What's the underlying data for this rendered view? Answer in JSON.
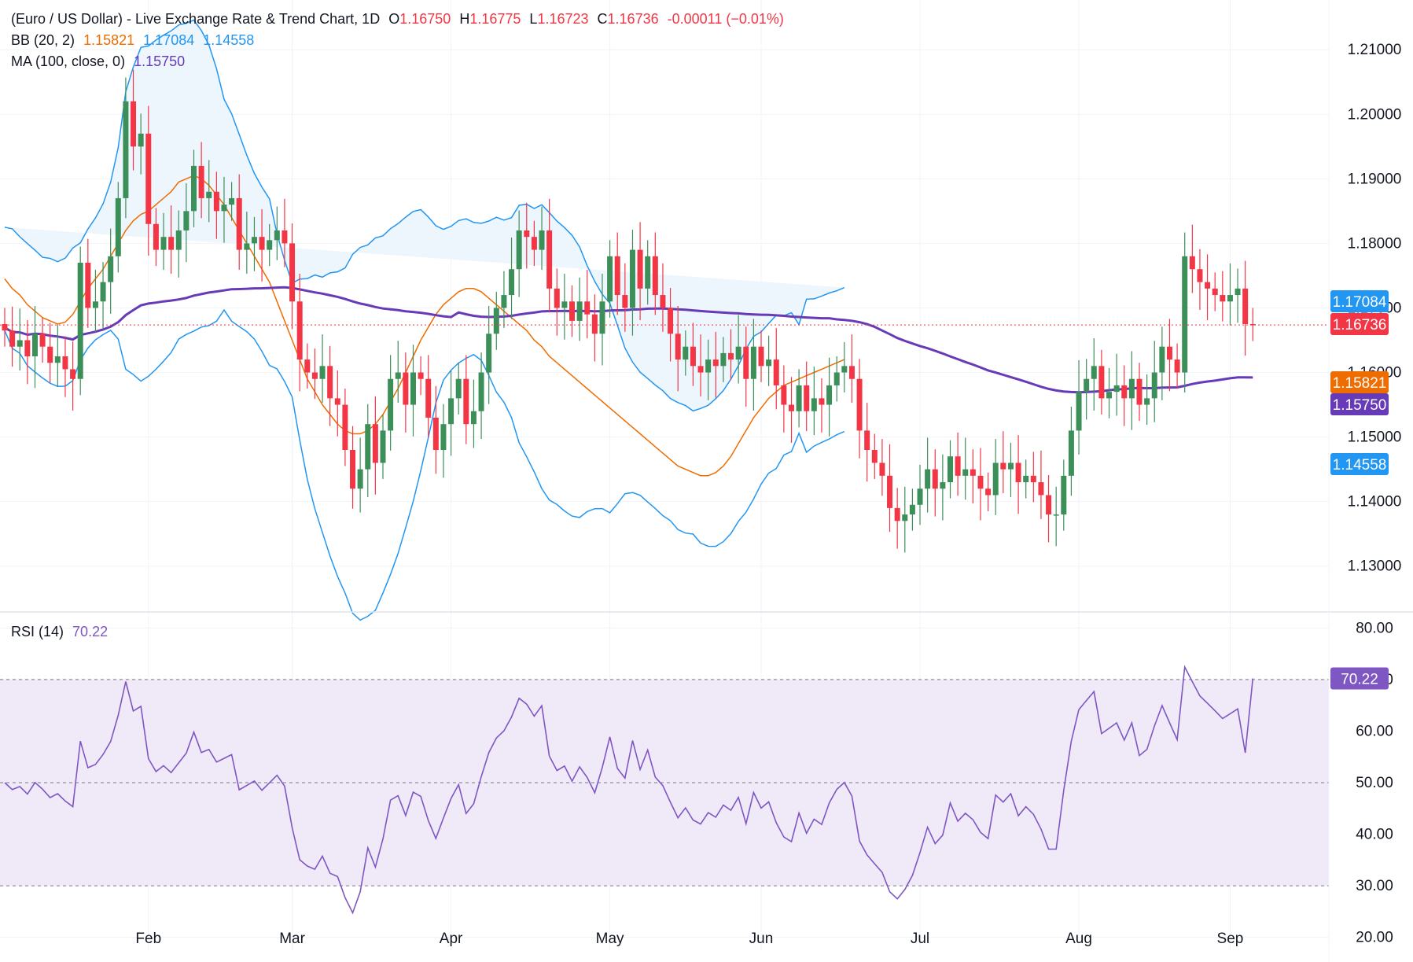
{
  "header": {
    "title": "(Euro / US Dollar) - Live Exchange Rate & Trend Chart, 1D",
    "open_label": "O",
    "open": "1.16750",
    "high_label": "H",
    "high": "1.16775",
    "low_label": "L",
    "low": "1.16723",
    "close_label": "C",
    "close": "1.16736",
    "change": "-0.00011 (−0.01%)"
  },
  "indicators": {
    "bb": {
      "label": "BB (20, 2)",
      "basis": "1.15821",
      "upper": "1.17084",
      "lower": "1.14558"
    },
    "ma": {
      "label": "MA (100, close, 0)",
      "value": "1.15750"
    },
    "rsi": {
      "label": "RSI (14)",
      "value": "70.22"
    }
  },
  "colors": {
    "up": "#26a69a",
    "up_fill": "#3d8f5a",
    "down": "#f23645",
    "bb_basis": "#ef6c00",
    "bb_band": "#2196f3",
    "bb_fill": "#eef6fd",
    "ma": "#673ab7",
    "rsi": "#7e57c2",
    "rsi_fill": "#efe9f8",
    "grid": "#f0f3fa",
    "axis_text": "#131722"
  },
  "chart_data": [
    {
      "type": "candlestick",
      "price_axis": {
        "ticks": [
          "1.21000",
          "1.20000",
          "1.19000",
          "1.18000",
          "1.17000",
          "1.16000",
          "1.15000",
          "1.14000",
          "1.13000"
        ],
        "range": [
          1.1229,
          1.2177
        ]
      },
      "time_axis": {
        "labels": [
          "Feb",
          "Mar",
          "Apr",
          "May",
          "Jun",
          "Jul",
          "Aug",
          "Sep"
        ],
        "label_index": [
          19,
          38,
          59,
          80,
          100,
          121,
          142,
          162
        ]
      },
      "price_badges": [
        {
          "name": "bb-upper",
          "value": "1.17084",
          "color": "#2196f3"
        },
        {
          "name": "last-price",
          "value": "1.16736",
          "color": "#f23645"
        },
        {
          "name": "bb-basis",
          "value": "1.15821",
          "color": "#ef6c00"
        },
        {
          "name": "ma",
          "value": "1.15750",
          "color": "#673ab7"
        },
        {
          "name": "bb-lower",
          "value": "1.14558",
          "color": "#2196f3"
        }
      ],
      "closes": [
        1.1665,
        1.164,
        1.165,
        1.1625,
        1.166,
        1.164,
        1.1615,
        1.1625,
        1.1605,
        1.159,
        1.177,
        1.17,
        1.171,
        1.174,
        1.178,
        1.187,
        1.202,
        1.195,
        1.197,
        1.183,
        1.179,
        1.181,
        1.179,
        1.182,
        1.185,
        1.192,
        1.187,
        1.188,
        1.185,
        1.186,
        1.187,
        1.179,
        1.18,
        1.181,
        1.179,
        1.1805,
        1.182,
        1.18,
        1.171,
        1.162,
        1.16,
        1.159,
        1.161,
        1.156,
        1.155,
        1.148,
        1.142,
        1.145,
        1.152,
        1.146,
        1.151,
        1.159,
        1.16,
        1.155,
        1.16,
        1.159,
        1.153,
        1.148,
        1.152,
        1.156,
        1.159,
        1.152,
        1.154,
        1.16,
        1.166,
        1.17,
        1.172,
        1.176,
        1.182,
        1.181,
        1.179,
        1.182,
        1.173,
        1.17,
        1.171,
        1.168,
        1.171,
        1.169,
        1.166,
        1.171,
        1.178,
        1.172,
        1.17,
        1.179,
        1.173,
        1.178,
        1.172,
        1.17,
        1.166,
        1.162,
        1.164,
        1.161,
        1.16,
        1.162,
        1.161,
        1.163,
        1.162,
        1.164,
        1.159,
        1.164,
        1.161,
        1.162,
        1.158,
        1.155,
        1.154,
        1.158,
        1.154,
        1.156,
        1.155,
        1.158,
        1.16,
        1.161,
        1.159,
        1.151,
        1.148,
        1.146,
        1.144,
        1.139,
        1.137,
        1.138,
        1.1395,
        1.142,
        1.145,
        1.142,
        1.143,
        1.147,
        1.144,
        1.145,
        1.144,
        1.142,
        1.141,
        1.146,
        1.145,
        1.146,
        1.143,
        1.144,
        1.143,
        1.141,
        1.138,
        1.138,
        1.144,
        1.151,
        1.157,
        1.159,
        1.161,
        1.156,
        1.157,
        1.158,
        1.156,
        1.159,
        1.155,
        1.156,
        1.16,
        1.164,
        1.162,
        1.16,
        1.178,
        1.176,
        1.174,
        1.173,
        1.172,
        1.171,
        1.172,
        1.173,
        1.1675,
        1.16736
      ],
      "bb_basis": [
        1.1745,
        1.173,
        1.172,
        1.1705,
        1.1695,
        1.1685,
        1.168,
        1.1675,
        1.1678,
        1.169,
        1.171,
        1.173,
        1.1745,
        1.176,
        1.178,
        1.18,
        1.182,
        1.1835,
        1.1845,
        1.185,
        1.186,
        1.187,
        1.188,
        1.1895,
        1.19,
        1.1905,
        1.19,
        1.189,
        1.1875,
        1.186,
        1.184,
        1.182,
        1.18,
        1.178,
        1.176,
        1.174,
        1.171,
        1.168,
        1.165,
        1.162,
        1.159,
        1.157,
        1.155,
        1.1535,
        1.152,
        1.151,
        1.1505,
        1.1505,
        1.151,
        1.152,
        1.1535,
        1.1555,
        1.1575,
        1.16,
        1.1625,
        1.165,
        1.167,
        1.169,
        1.1705,
        1.1715,
        1.1725,
        1.173,
        1.173,
        1.1725,
        1.1715,
        1.1705,
        1.1695,
        1.1685,
        1.1675,
        1.1665,
        1.165,
        1.164,
        1.1625,
        1.1615,
        1.1605,
        1.1595,
        1.1585,
        1.1575,
        1.1565,
        1.1555,
        1.1545,
        1.1535,
        1.1525,
        1.1515,
        1.1505,
        1.1495,
        1.1485,
        1.1475,
        1.1465,
        1.1455,
        1.145,
        1.1445,
        1.144,
        1.144,
        1.1445,
        1.1455,
        1.147,
        1.149,
        1.151,
        1.153,
        1.1545,
        1.156,
        1.157,
        1.158,
        1.1585,
        1.159,
        1.1595,
        1.16,
        1.1605,
        1.161,
        1.1615,
        1.162
      ],
      "rsi": {
        "value": 70.22,
        "ticks": [
          "80.00",
          "70.00",
          "60.00",
          "50.00",
          "40.00",
          "30.00",
          "20.00"
        ],
        "bands": [
          30,
          50,
          70
        ],
        "range": [
          17.5,
          82.5
        ]
      }
    }
  ]
}
